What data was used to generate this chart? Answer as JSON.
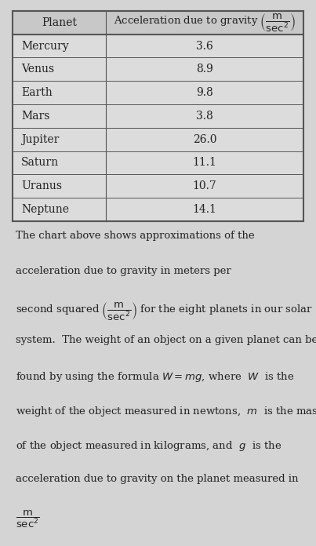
{
  "planets": [
    "Mercury",
    "Venus",
    "Earth",
    "Mars",
    "Jupiter",
    "Saturn",
    "Uranus",
    "Neptune"
  ],
  "gravity": [
    "3.6",
    "8.9",
    "9.8",
    "3.8",
    "26.0",
    "11.1",
    "10.7",
    "14.1"
  ],
  "col1_header": "Planet",
  "bg_color": "#d4d4d4",
  "border_color": "#555555",
  "text_color": "#222222",
  "body_text": [
    "The chart above shows approximations of the",
    "acceleration due to gravity in meters per",
    "second squared $\\left(\\dfrac{\\mathrm{m}}{\\mathrm{sec}^2}\\right)$ for the eight planets in our solar",
    "system.  The weight of an object on a given planet can be",
    "found by using the formula $W = mg$, where  $W$  is the",
    "weight of the object measured in newtons,  $m$  is the mass",
    "of the object measured in kilograms, and  $g$  is the",
    "acceleration due to gravity on the planet measured in",
    "$\\dfrac{\\mathrm{m}}{\\mathrm{sec}^2}$"
  ],
  "font_size_table": 10,
  "font_size_body": 9.5,
  "figsize": [
    4.03,
    6.96
  ],
  "dpi": 100
}
